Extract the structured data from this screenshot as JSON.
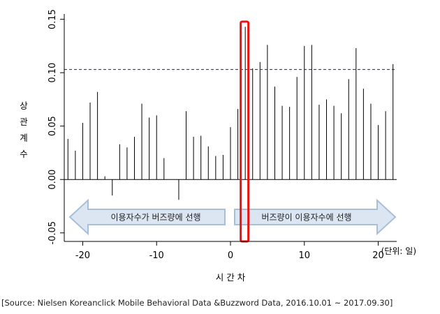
{
  "chart_data": {
    "type": "bar",
    "title": "",
    "xlabel": "시 간 차",
    "ylabel": "상 관 계 수",
    "ylabel_chars": [
      "상",
      "관",
      "계",
      "수"
    ],
    "unit_note": "(단위: 일)",
    "xlim": [
      -22.5,
      22.5
    ],
    "ylim": [
      -0.058,
      0.155
    ],
    "x_ticks": [
      -20,
      -10,
      0,
      10,
      20
    ],
    "y_ticks": [
      -0.05,
      0.0,
      0.05,
      0.1,
      0.15
    ],
    "y_tick_labels": [
      "-0.05",
      "0.00",
      "0.05",
      "0.10",
      "0.15"
    ],
    "x": [
      -22,
      -21,
      -20,
      -19,
      -18,
      -17,
      -16,
      -15,
      -14,
      -13,
      -12,
      -11,
      -10,
      -9,
      -8,
      -7,
      -6,
      -5,
      -4,
      -3,
      -2,
      -1,
      0,
      1,
      2,
      3,
      4,
      5,
      6,
      7,
      8,
      9,
      10,
      11,
      12,
      13,
      14,
      15,
      16,
      17,
      18,
      19,
      20,
      21,
      22
    ],
    "values": [
      0.038,
      0.027,
      0.053,
      0.072,
      0.082,
      0.003,
      -0.015,
      0.033,
      0.03,
      0.04,
      0.071,
      0.058,
      0.06,
      0.02,
      0.0,
      -0.019,
      0.064,
      0.04,
      0.041,
      0.031,
      0.022,
      0.023,
      0.049,
      0.066,
      0.143,
      0.104,
      0.11,
      0.126,
      0.087,
      0.069,
      0.068,
      0.096,
      0.125,
      0.126,
      0.07,
      0.075,
      0.069,
      0.062,
      0.094,
      0.123,
      0.085,
      0.071,
      0.051,
      0.064,
      0.108
    ],
    "threshold": 0.103,
    "highlight_lag": 2,
    "arrows": {
      "left_label": "이용자수가 버즈량에 선행",
      "right_label": "버즈량이 이용자수에 선행"
    },
    "colors": {
      "bars": "#000000",
      "threshold": "#1a1aa0",
      "highlight": "#ee1111",
      "arrow_fill": "#dce6f2",
      "arrow_stroke": "#a9bfd6"
    }
  },
  "source": "[Source: Nielsen Koreanclick Mobile Behavioral Data &Buzzword Data, 2016.10.01 ~ 2017.09.30]"
}
